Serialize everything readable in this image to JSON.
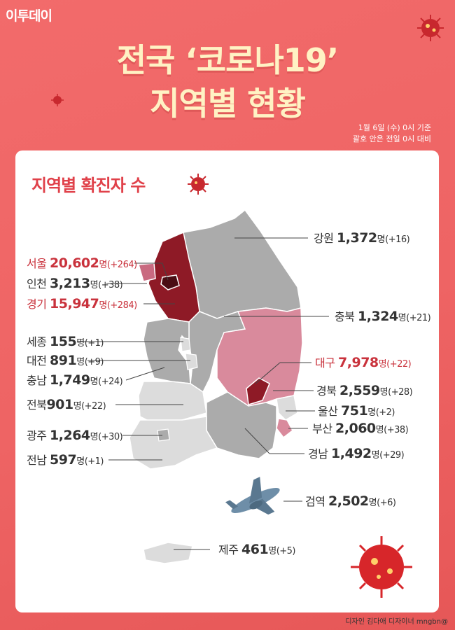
{
  "brand": "이투데이",
  "title_line1": "전국 ‘코로나19’",
  "title_line2": "지역별 현황",
  "date_line1": "1월 6일 (수) 0시 기준",
  "date_line2": "괄호 안은 전일 0시 대비",
  "subtitle": "지역별 확진자 수",
  "unit": "명",
  "regions": {
    "gangwon": {
      "name": "강원",
      "count": "1,372",
      "change": "(+16)"
    },
    "seoul": {
      "name": "서울",
      "count": "20,602",
      "change": "(+264)"
    },
    "incheon": {
      "name": "인천",
      "count": "3,213",
      "change": "(+38)"
    },
    "gyeonggi": {
      "name": "경기",
      "count": "15,947",
      "change": "(+284)"
    },
    "chungbuk": {
      "name": "충북",
      "count": "1,324",
      "change": "(+21)"
    },
    "sejong": {
      "name": "세종",
      "count": "155",
      "change": "(+1)"
    },
    "daejeon": {
      "name": "대전",
      "count": "891",
      "change": "(+9)"
    },
    "chungnam": {
      "name": "충남",
      "count": "1,749",
      "change": "(+24)"
    },
    "daegu": {
      "name": "대구",
      "count": "7,978",
      "change": "(+22)"
    },
    "gyeongbuk": {
      "name": "경북",
      "count": "2,559",
      "change": "(+28)"
    },
    "jeonbuk": {
      "name": "전북",
      "count": "901",
      "change": "(+22)"
    },
    "ulsan": {
      "name": "울산",
      "count": "751",
      "change": "(+2)"
    },
    "busan": {
      "name": "부산",
      "count": "2,060",
      "change": "(+38)"
    },
    "gwangju": {
      "name": "광주",
      "count": "1,264",
      "change": "(+30)"
    },
    "gyeongnam": {
      "name": "경남",
      "count": "1,492",
      "change": "(+29)"
    },
    "jeonnam": {
      "name": "전남",
      "count": "597",
      "change": "(+1)"
    },
    "quarantine": {
      "name": "검역",
      "count": "2,502",
      "change": "(+6)"
    },
    "jeju": {
      "name": "제주",
      "count": "461",
      "change": "(+5)"
    }
  },
  "credit": "디자인 김다애 디자이너 mngbn@",
  "colors": {
    "background": "#ee6464",
    "title": "#fff2c4",
    "highlight": "#c9323c",
    "seoul": "#4a0d14",
    "metro": "#8e1a26",
    "mid": "#d98a9c",
    "grey": "#ababab",
    "light": "#dcdcdc"
  }
}
